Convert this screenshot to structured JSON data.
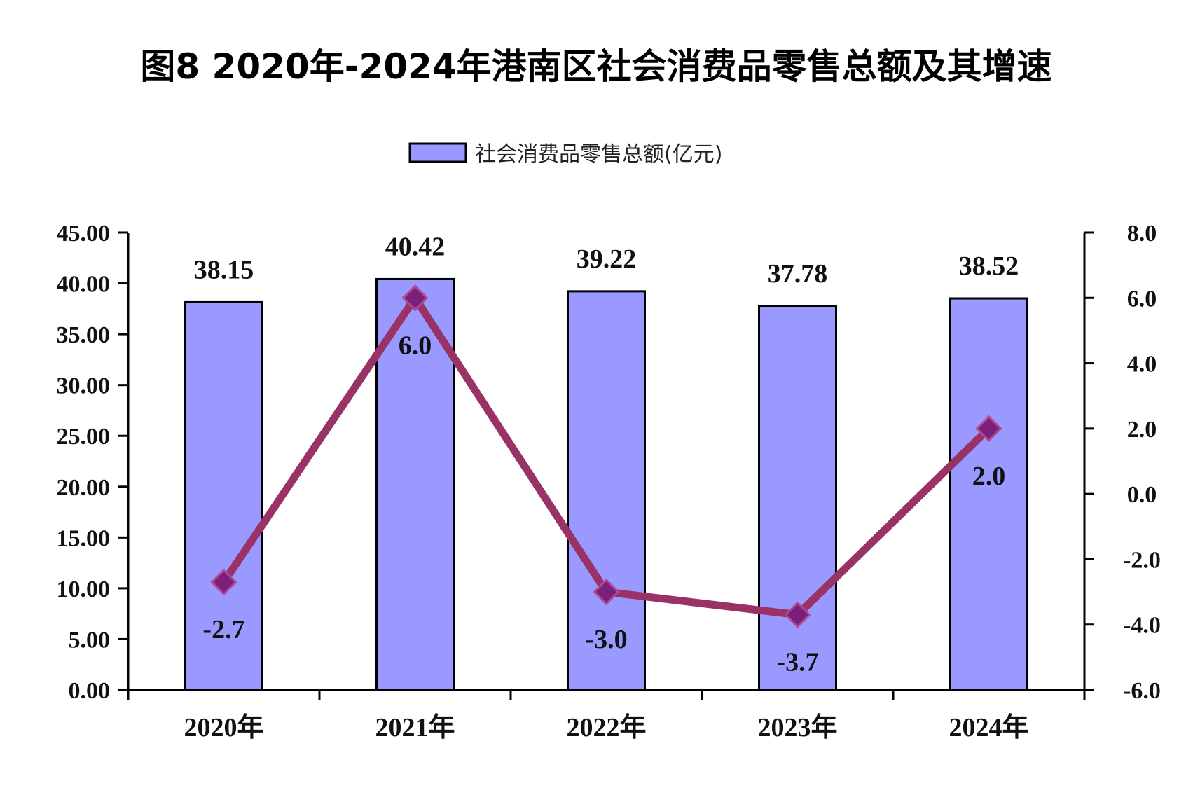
{
  "chart_data": {
    "type": "bar",
    "title": "图8 2020年-2024年港南区社会消费品零售总额及其增速",
    "categories": [
      "2020年",
      "2021年",
      "2022年",
      "2023年",
      "2024年"
    ],
    "series": [
      {
        "name": "社会消费品零售总额(亿元)",
        "type": "bar",
        "axis": "left",
        "values": [
          38.15,
          40.42,
          39.22,
          37.78,
          38.52
        ],
        "labels": [
          "38.15",
          "40.42",
          "39.22",
          "37.78",
          "38.52"
        ],
        "color": "#9999ff"
      },
      {
        "type": "line",
        "axis": "right",
        "values": [
          -2.7,
          6.0,
          -3.0,
          -3.7,
          2.0
        ],
        "labels": [
          "-2.7",
          "6.0",
          "-3.0",
          "-3.7",
          "2.0"
        ],
        "color": "#993366",
        "marker_color": "#7a1f7a"
      }
    ],
    "y_left": {
      "min": 0,
      "max": 45,
      "step": 5,
      "ticks": [
        "0.00",
        "5.00",
        "10.00",
        "15.00",
        "20.00",
        "25.00",
        "30.00",
        "35.00",
        "40.00",
        "45.00"
      ]
    },
    "y_right": {
      "min": -6,
      "max": 8,
      "step": 2,
      "ticks": [
        "-6.0",
        "-4.0",
        "-2.0",
        "0.0",
        "2.0",
        "4.0",
        "6.0",
        "8.0"
      ]
    },
    "legend": {
      "position": "top",
      "entries": [
        "社会消费品零售总额(亿元)"
      ]
    },
    "grid": false
  }
}
